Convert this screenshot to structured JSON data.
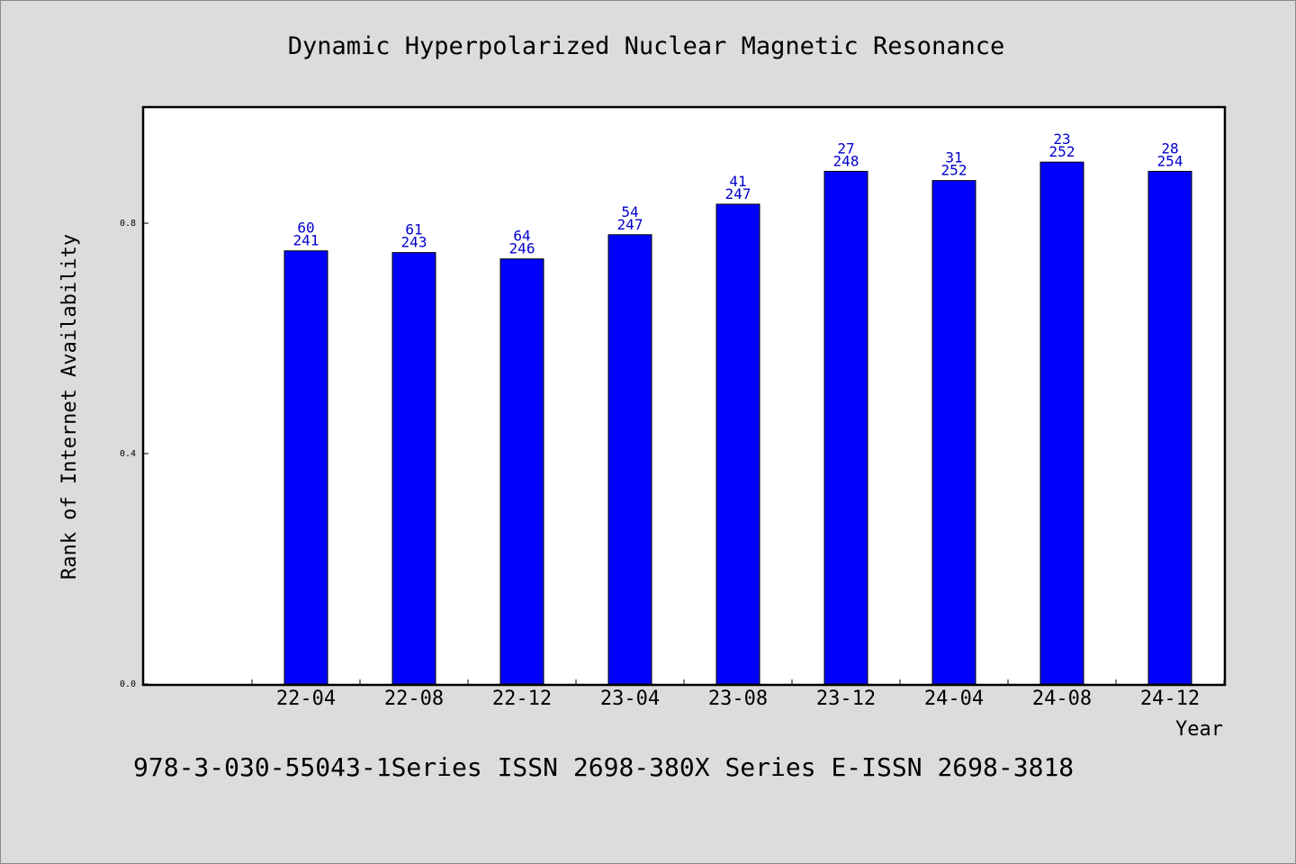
{
  "chart_data": {
    "type": "bar",
    "title": "Dynamic Hyperpolarized Nuclear Magnetic Resonance",
    "xlabel": "Year",
    "ylabel": "Rank of Internet Availability",
    "categories": [
      "22-04",
      "22-08",
      "22-12",
      "23-04",
      "23-08",
      "23-12",
      "24-04",
      "24-08",
      "24-12"
    ],
    "values": [
      0.752,
      0.749,
      0.738,
      0.78,
      0.833,
      0.89,
      0.874,
      0.906,
      0.89
    ],
    "label_top": [
      "60",
      "61",
      "64",
      "54",
      "41",
      "27",
      "31",
      "23",
      "28"
    ],
    "label_bottom": [
      "241",
      "243",
      "246",
      "247",
      "247",
      "248",
      "252",
      "252",
      "254"
    ],
    "ylim": [
      0,
      1.0
    ],
    "yticks": [
      0.0,
      0.4,
      0.8
    ],
    "ytick_labels": [
      "0.0",
      "0.4",
      "0.8"
    ],
    "grid": false,
    "bar_color": "#0000ff",
    "label_color": "#0000cc"
  },
  "footer": "978-3-030-55043-1Series ISSN 2698-380X Series E-ISSN 2698-3818"
}
